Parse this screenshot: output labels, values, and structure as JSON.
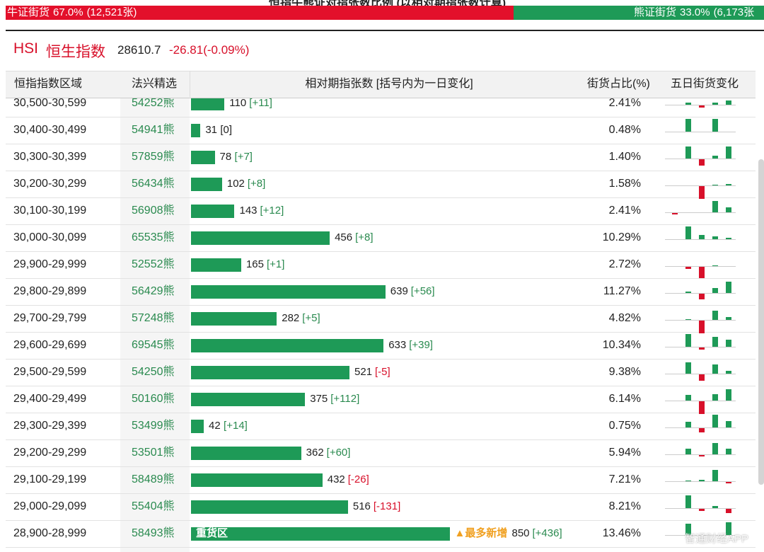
{
  "top_title": "恒指牛熊证对指张数比例 (以相对期指张数计算)",
  "banner": {
    "bull": {
      "label": "牛证街货",
      "share": "67.0%",
      "count": "(12,521张)"
    },
    "bear": {
      "label": "熊证街货",
      "share": "33.0%",
      "count": "(6,173张"
    }
  },
  "header": {
    "code": "HSI",
    "name": "恒生指数",
    "price": "28610.7",
    "change": "-26.81(-0.09%)"
  },
  "table": {
    "columns": [
      "恒指指数区域",
      "法兴精选",
      "相对期指张数 [括号内为一日变化]",
      "街货占比(%)",
      "五日街货变化"
    ],
    "rows": [
      {
        "range": "30,500-30,599",
        "pick": "54252熊",
        "count": 110,
        "change": "[+11]",
        "share": "2.41%",
        "spark": [
          0,
          3,
          -3,
          3,
          6
        ]
      },
      {
        "range": "30,400-30,499",
        "pick": "54941熊",
        "count": 31,
        "change": "[0]",
        "share": "0.48%",
        "spark": [
          0,
          18,
          0,
          18,
          0
        ]
      },
      {
        "range": "30,300-30,399",
        "pick": "57859熊",
        "count": 78,
        "change": "[+7]",
        "share": "1.40%",
        "spark": [
          0,
          17,
          -9,
          4,
          17
        ]
      },
      {
        "range": "30,200-30,299",
        "pick": "56434熊",
        "count": 102,
        "change": "[+8]",
        "share": "1.58%",
        "spark": [
          0,
          0,
          -18,
          1,
          2
        ]
      },
      {
        "range": "30,100-30,199",
        "pick": "56908熊",
        "count": 143,
        "change": "[+12]",
        "share": "2.41%",
        "spark": [
          -2,
          0,
          0,
          16,
          7
        ]
      },
      {
        "range": "30,000-30,099",
        "pick": "65535熊",
        "count": 456,
        "change": "[+8]",
        "share": "10.29%",
        "spark": [
          0,
          18,
          6,
          4,
          2
        ]
      },
      {
        "range": "29,900-29,999",
        "pick": "52552熊",
        "count": 165,
        "change": "[+1]",
        "share": "2.72%",
        "spark": [
          0,
          -3,
          -16,
          1,
          0
        ]
      },
      {
        "range": "29,800-29,899",
        "pick": "56429熊",
        "count": 639,
        "change": "[+56]",
        "share": "11.27%",
        "spark": [
          0,
          2,
          -8,
          7,
          16
        ]
      },
      {
        "range": "29,700-29,799",
        "pick": "57248熊",
        "count": 282,
        "change": "[+5]",
        "share": "4.82%",
        "spark": [
          0,
          1,
          -18,
          13,
          4
        ]
      },
      {
        "range": "29,600-29,699",
        "pick": "69545熊",
        "count": 633,
        "change": "[+39]",
        "share": "10.34%",
        "spark": [
          0,
          18,
          -3,
          14,
          10
        ]
      },
      {
        "range": "29,500-29,599",
        "pick": "54250熊",
        "count": 521,
        "change": "[-5]",
        "share": "9.38%",
        "spark": [
          0,
          16,
          -9,
          13,
          4
        ]
      },
      {
        "range": "29,400-29,499",
        "pick": "50160熊",
        "count": 375,
        "change": "[+112]",
        "share": "6.14%",
        "spark": [
          0,
          8,
          -18,
          9,
          16
        ]
      },
      {
        "range": "29,300-29,399",
        "pick": "53499熊",
        "count": 42,
        "change": "[+14]",
        "share": "0.75%",
        "spark": [
          0,
          8,
          -6,
          18,
          9
        ]
      },
      {
        "range": "29,200-29,299",
        "pick": "53501熊",
        "count": 362,
        "change": "[+60]",
        "share": "5.94%",
        "spark": [
          0,
          8,
          -2,
          16,
          8
        ]
      },
      {
        "range": "29,100-29,199",
        "pick": "58489熊",
        "count": 432,
        "change": "[-26]",
        "share": "7.21%",
        "spark": [
          0,
          1,
          2,
          16,
          -2
        ]
      },
      {
        "range": "29,000-29,099",
        "pick": "55404熊",
        "count": 516,
        "change": "[-131]",
        "share": "8.21%",
        "spark": [
          0,
          18,
          -3,
          3,
          -6
        ]
      },
      {
        "range": "28,900-28,999",
        "pick": "58493熊",
        "count": 850,
        "change": "[+436]",
        "share": "13.46%",
        "spark": [
          0,
          16,
          0,
          0,
          18
        ],
        "tag": "重货区",
        "note": "▲最多新增"
      }
    ]
  },
  "watermark": "智通财经APP"
}
